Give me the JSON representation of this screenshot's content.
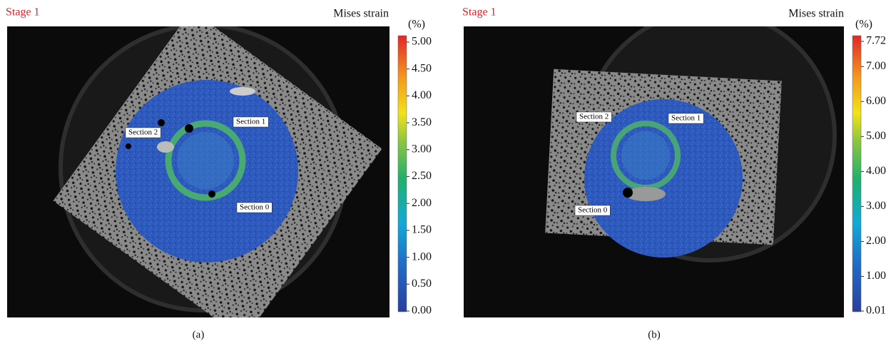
{
  "panels": [
    {
      "stage": "Stage 1",
      "title": "Mises strain",
      "unit": "(%)",
      "colorbar_ticks": [
        "5.00",
        "4.50",
        "4.00",
        "3.50",
        "3.00",
        "2.50",
        "2.00",
        "1.50",
        "1.00",
        "0.50",
        "0.00"
      ],
      "sections": [
        "Section 1",
        "Section 2",
        "Section 0"
      ],
      "caption": "(a)"
    },
    {
      "stage": "Stage 1",
      "title": "Mises strain",
      "unit": "(%)",
      "colorbar_ticks": [
        "7.72",
        "7.00",
        "6.00",
        "5.00",
        "4.00",
        "3.00",
        "2.00",
        "1.00",
        "0.01"
      ],
      "sections": [
        "Section 2",
        "Section 1",
        "Section 0"
      ],
      "caption": "(b)"
    }
  ]
}
